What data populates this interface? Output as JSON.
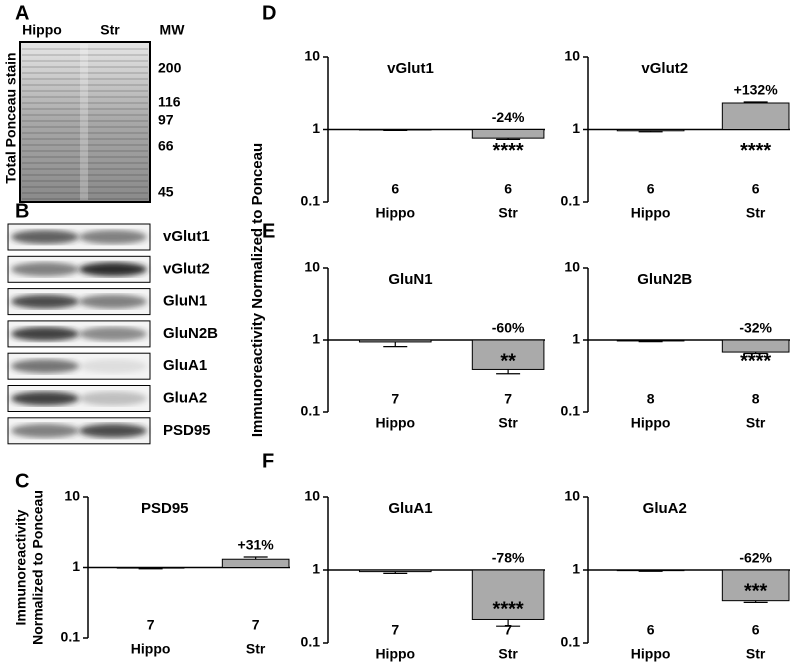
{
  "panel_letters": [
    "A",
    "B",
    "C",
    "D",
    "E",
    "F"
  ],
  "gel": {
    "lanes": [
      "Hippo",
      "Str"
    ],
    "mw_label": "MW",
    "mw": [
      200,
      116,
      97,
      66,
      45
    ],
    "ylabel": "Total Ponceau stain"
  },
  "blots": [
    "vGlut1",
    "vGlut2",
    "GluN1",
    "GluN2B",
    "GluA1",
    "GluA2",
    "PSD95"
  ],
  "shared_ylabel": "Immunoreactivity Normalized to Ponceau",
  "chart_data": [
    {
      "type": "bar",
      "title": "PSD95",
      "ylabel": [
        "Immunoreactivity",
        "Normalized to Ponceau"
      ],
      "categories": [
        "Hippo",
        "Str"
      ],
      "values": [
        0.98,
        1.31
      ],
      "errors": [
        0.02,
        0.1
      ],
      "n": [
        7,
        7
      ],
      "change_label": "+31%",
      "color": "#aaaaaa",
      "ylim": [
        0.1,
        10
      ],
      "yticks": [
        0.1,
        1,
        10
      ],
      "log_scale": true,
      "bar_base": 1
    },
    {
      "type": "bar",
      "title": "vGlut1",
      "categories": [
        "Hippo",
        "Str"
      ],
      "values": [
        0.99,
        0.76
      ],
      "errors": [
        0.02,
        0.03
      ],
      "n": [
        6,
        6
      ],
      "change_label": "-24%",
      "significance": "****",
      "color": "#aaaaaa",
      "ylim": [
        0.1,
        10
      ],
      "yticks": [
        0.1,
        1,
        10
      ],
      "log_scale": true,
      "bar_base": 1
    },
    {
      "type": "bar",
      "title": "vGlut2",
      "categories": [
        "Hippo",
        "Str"
      ],
      "values": [
        0.96,
        2.32
      ],
      "errors": [
        0.03,
        0.08
      ],
      "n": [
        6,
        6
      ],
      "change_label": "+132%",
      "significance": "****",
      "color": "#aaaaaa",
      "ylim": [
        0.1,
        10
      ],
      "yticks": [
        0.1,
        1,
        10
      ],
      "log_scale": true,
      "bar_base": 1
    },
    {
      "type": "bar",
      "title": "GluN1",
      "categories": [
        "Hippo",
        "Str"
      ],
      "values": [
        0.94,
        0.39
      ],
      "errors": [
        0.13,
        0.05
      ],
      "n": [
        7,
        7
      ],
      "change_label": "-60%",
      "significance": "**",
      "color": "#aaaaaa",
      "ylim": [
        0.1,
        10
      ],
      "yticks": [
        0.1,
        1,
        10
      ],
      "log_scale": true,
      "bar_base": 1
    },
    {
      "type": "bar",
      "title": "GluN2B",
      "categories": [
        "Hippo",
        "Str"
      ],
      "values": [
        0.97,
        0.68
      ],
      "errors": [
        0.02,
        0.03
      ],
      "n": [
        8,
        8
      ],
      "change_label": "-32%",
      "significance": "****",
      "color": "#aaaaaa",
      "ylim": [
        0.1,
        10
      ],
      "yticks": [
        0.1,
        1,
        10
      ],
      "log_scale": true,
      "bar_base": 1
    },
    {
      "type": "bar",
      "title": "GluA1",
      "categories": [
        "Hippo",
        "Str"
      ],
      "values": [
        0.95,
        0.21
      ],
      "errors": [
        0.05,
        0.04
      ],
      "n": [
        7,
        7
      ],
      "change_label": "-78%",
      "significance": "****",
      "color": "#aaaaaa",
      "ylim": [
        0.1,
        10
      ],
      "yticks": [
        0.1,
        1,
        10
      ],
      "log_scale": true,
      "bar_base": 1
    },
    {
      "type": "bar",
      "title": "GluA2",
      "categories": [
        "Hippo",
        "Str"
      ],
      "values": [
        0.98,
        0.38
      ],
      "errors": [
        0.02,
        0.02
      ],
      "n": [
        6,
        6
      ],
      "change_label": "-62%",
      "significance": "***",
      "color": "#aaaaaa",
      "ylim": [
        0.1,
        10
      ],
      "yticks": [
        0.1,
        1,
        10
      ],
      "log_scale": true,
      "bar_base": 1
    }
  ]
}
